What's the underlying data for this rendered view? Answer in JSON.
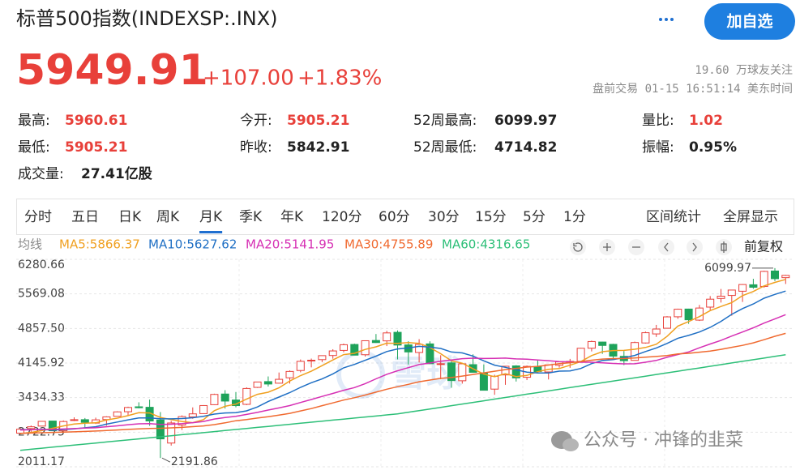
{
  "header": {
    "title": "标普500指数(INDEXSP:.INX)",
    "price": "5949.91",
    "change": "+107.00",
    "change_pct": "+1.83%",
    "followers": "19.60 万球友关注",
    "status": "盘前交易 01-15 16:51:14 美东时间",
    "button": "加自选",
    "stats": [
      {
        "label": "最高:",
        "value": "5960.61"
      },
      {
        "label": "今开:",
        "value": "5905.21"
      },
      {
        "label": "52周最高:",
        "value": "6099.97"
      },
      {
        "label": "量比:",
        "value": "1.02"
      },
      {
        "label": "最低:",
        "value": "5905.21"
      },
      {
        "label": "昨收:",
        "value": "5842.91"
      },
      {
        "label": "52周最低:",
        "value": "4714.82"
      },
      {
        "label": "振幅:",
        "value": "0.95%"
      },
      {
        "label": "成交量:",
        "value": "27.41亿股"
      }
    ],
    "tabs": [
      "分时",
      "五日",
      "日K",
      "周K",
      "月K",
      "季K",
      "年K",
      "120分",
      "60分",
      "30分",
      "15分",
      "5分",
      "1分"
    ],
    "tools": [
      "区间统计",
      "全屏显示"
    ],
    "adjust": "前复权",
    "watermark": "公众号 · 冲锋的韭菜",
    "logo_watermark": "雪球"
  },
  "chart_data": {
    "type": "candlestick",
    "ma_title": "均线",
    "ylim": [
      2011.17,
      6280.66
    ],
    "yticks": [
      6280.66,
      5569.08,
      {
        "value": 4857.5,
        "label": "4857.50"
      },
      4145.92,
      3434.33,
      2722.75,
      2011.17
    ],
    "grid": true,
    "up_color": "#e8403a",
    "down_color": "#1ea35a",
    "open": [
      2703,
      2798,
      2848,
      2952,
      2751,
      2971,
      2980,
      2910,
      2983,
      3050,
      3144,
      3245,
      3235,
      2974,
      2499,
      2870,
      3038,
      3105,
      3289,
      3508,
      3385,
      3296,
      3645,
      3764,
      3731,
      3842,
      3992,
      4191,
      4216,
      4301,
      4406,
      4528,
      4317,
      4610,
      4602,
      4778,
      4519,
      4363,
      4540,
      4130,
      4149,
      3781,
      4113,
      3937,
      3609,
      3901,
      4087,
      3853,
      4071,
      3963,
      4100,
      4166,
      4181,
      4451,
      4578,
      4530,
      4284,
      4201,
      4559,
      4745,
      4862,
      5098,
      5257,
      5029,
      5297,
      5475,
      5537,
      5624,
      5757,
      5723,
      6040,
      5903
    ],
    "high": [
      2813,
      2860,
      2949,
      2954,
      2964,
      3028,
      3014,
      3022,
      3050,
      3154,
      3248,
      3338,
      3394,
      3137,
      2955,
      3068,
      3233,
      3280,
      3515,
      3588,
      3550,
      3646,
      3760,
      3870,
      3951,
      3994,
      4219,
      4238,
      4302,
      4430,
      4546,
      4545,
      4608,
      4743,
      4808,
      4818,
      4595,
      4637,
      4593,
      4307,
      4178,
      4140,
      4325,
      4119,
      3905,
      4080,
      4101,
      4095,
      4195,
      4111,
      4170,
      4231,
      4458,
      4607,
      4584,
      4541,
      4393,
      4587,
      4793,
      4931,
      5111,
      5265,
      5264,
      5342,
      5524,
      5670,
      5651,
      5768,
      5879,
      6045,
      6099.97,
      5961
    ],
    "low": [
      2681,
      2722,
      2848,
      2750,
      2728,
      2952,
      2822,
      2892,
      2856,
      3050,
      3070,
      3214,
      2855,
      2191.86,
      2447,
      2767,
      2999,
      3101,
      3284,
      3209,
      3234,
      3279,
      3633,
      3663,
      3725,
      3723,
      3955,
      4057,
      4165,
      4234,
      4367,
      4306,
      4279,
      4560,
      4495,
      4222,
      4115,
      4157,
      4124,
      3811,
      3637,
      3722,
      3955,
      3585,
      3492,
      3698,
      3765,
      3795,
      3943,
      3808,
      4049,
      4048,
      4166,
      4385,
      4335,
      4238,
      4103,
      4197,
      4546,
      4683,
      4853,
      5057,
      4953,
      5011,
      5234,
      5390,
      5120,
      5403,
      5674,
      5696,
      5832,
      5773
    ],
    "close": [
      2784,
      2834,
      2946,
      2752,
      2942,
      2980,
      2926,
      2977,
      3038,
      3141,
      3231,
      3226,
      2954,
      2585,
      2912,
      3044,
      3100,
      3271,
      3500,
      3363,
      3270,
      3622,
      3756,
      3714,
      3811,
      3973,
      4181,
      4204,
      4298,
      4395,
      4523,
      4308,
      4605,
      4567,
      4766,
      4516,
      4374,
      4530,
      4132,
      4132,
      3785,
      4130,
      3955,
      3586,
      3872,
      4080,
      3840,
      4077,
      3970,
      4109,
      4169,
      4180,
      4450,
      4589,
      4508,
      4288,
      4194,
      4568,
      4770,
      4846,
      5096,
      5254,
      5036,
      5278,
      5460,
      5522,
      5648,
      5762,
      5705,
      6032,
      5882,
      5949.91
    ],
    "ma": [
      {
        "label": "MA5:5866.37",
        "color": "#f0a020",
        "values": [
          2693,
          2718,
          2755,
          2804,
          2852,
          2891,
          2909,
          2915,
          2973,
          3012,
          3063,
          3123,
          3118,
          3027,
          2982,
          2944,
          2919,
          2982,
          3165,
          3256,
          3301,
          3405,
          3502,
          3545,
          3635,
          3775,
          3887,
          3977,
          4093,
          4210,
          4320,
          4346,
          4426,
          4480,
          4554,
          4552,
          4566,
          4551,
          4464,
          4337,
          4191,
          4142,
          4027,
          3918,
          3866,
          3925,
          3867,
          3891,
          3968,
          4015,
          4033,
          4101,
          4176,
          4299,
          4379,
          4403,
          4406,
          4429,
          4466,
          4533,
          4695,
          4907,
          5000,
          5102,
          5225,
          5310,
          5389,
          5534,
          5619,
          5734,
          5806,
          5866.37
        ]
      },
      {
        "label": "MA10:5627.62",
        "color": "#1f6fc4",
        "values": [
          2777,
          2774,
          2778,
          2767,
          2776,
          2792,
          2814,
          2835,
          2889,
          2932,
          2977,
          3016,
          3017,
          3000,
          2997,
          3004,
          3021,
          3050,
          3096,
          3119,
          3123,
          3162,
          3242,
          3355,
          3446,
          3538,
          3646,
          3740,
          3819,
          3923,
          4048,
          4117,
          4202,
          4287,
          4382,
          4436,
          4456,
          4489,
          4472,
          4446,
          4372,
          4354,
          4289,
          4191,
          4102,
          4058,
          4005,
          3959,
          3943,
          3941,
          3979,
          3984,
          4034,
          4134,
          4197,
          4218,
          4254,
          4303,
          4383,
          4456,
          4549,
          4657,
          4715,
          4784,
          4879,
          5003,
          5148,
          5267,
          5361,
          5480,
          5558,
          5627.62
        ]
      },
      {
        "label": "MA20:5141.95",
        "color": "#d630b4",
        "values": [
          2769,
          2772,
          2779,
          2779,
          2788,
          2796,
          2807,
          2813,
          2835,
          2854,
          2877,
          2895,
          2898,
          2884,
          2887,
          2898,
          2918,
          2943,
          2993,
          3026,
          3050,
          3089,
          3130,
          3178,
          3222,
          3271,
          3334,
          3395,
          3458,
          3521,
          3586,
          3640,
          3722,
          3821,
          3914,
          3987,
          4051,
          4115,
          4146,
          4185,
          4210,
          4236,
          4246,
          4239,
          4242,
          4247,
          4231,
          4224,
          4208,
          4194,
          4176,
          4169,
          4162,
          4163,
          4150,
          4138,
          4130,
          4131,
          4163,
          4199,
          4264,
          4321,
          4375,
          4459,
          4538,
          4611,
          4701,
          4785,
          4872,
          4968,
          5054,
          5141.95
        ]
      },
      {
        "label": "MA30:4755.89",
        "color": "#f06a30",
        "values": [
          2700,
          2705,
          2712,
          2718,
          2724,
          2730,
          2738,
          2746,
          2756,
          2768,
          2780,
          2792,
          2800,
          2804,
          2812,
          2822,
          2836,
          2852,
          2878,
          2915,
          2959,
          2984,
          3013,
          3041,
          3073,
          3111,
          3161,
          3208,
          3268,
          3325,
          3383,
          3432,
          3487,
          3547,
          3608,
          3659,
          3708,
          3760,
          3796,
          3830,
          3848,
          3878,
          3911,
          3944,
          3977,
          4011,
          4036,
          4063,
          4078,
          4104,
          4133,
          4152,
          4175,
          4204,
          4227,
          4237,
          4239,
          4250,
          4266,
          4281,
          4300,
          4332,
          4346,
          4370,
          4393,
          4427,
          4469,
          4510,
          4562,
          4626,
          4696,
          4755.89
        ]
      },
      {
        "label": "MA60:4316.65",
        "color": "#2dbf78",
        "values": [
          2350,
          2371,
          2393,
          2414,
          2436,
          2457,
          2478,
          2500,
          2521,
          2543,
          2564,
          2585,
          2607,
          2628,
          2650,
          2671,
          2692,
          2714,
          2735,
          2757,
          2778,
          2799,
          2821,
          2842,
          2864,
          2885,
          2906,
          2928,
          2949,
          2971,
          2992,
          3013,
          3035,
          3056,
          3078,
          3099,
          3133,
          3167,
          3200,
          3234,
          3268,
          3302,
          3336,
          3369,
          3403,
          3437,
          3471,
          3505,
          3538,
          3572,
          3606,
          3640,
          3674,
          3707,
          3741,
          3775,
          3809,
          3843,
          3876,
          3910,
          3944,
          3978,
          4012,
          4045,
          4079,
          4113,
          4147,
          4181,
          4214,
          4248,
          4282,
          4316.65
        ]
      }
    ]
  }
}
